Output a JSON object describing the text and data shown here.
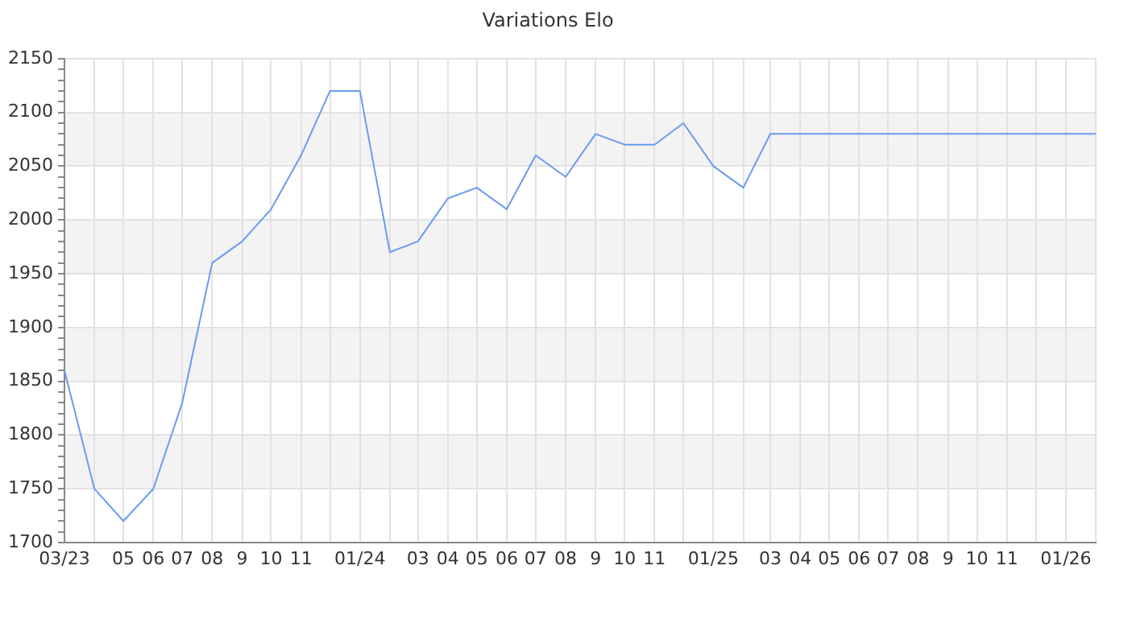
{
  "chart_data": {
    "type": "line",
    "title": "Variations Elo",
    "x": [
      "2023-03",
      "2023-04",
      "2023-05",
      "2023-06",
      "2023-07",
      "2023-08",
      "2023-09",
      "2023-10",
      "2023-11",
      "2023-12",
      "2024-01",
      "2024-02",
      "2024-03",
      "2024-04",
      "2024-05",
      "2024-06",
      "2024-07",
      "2024-08",
      "2024-09",
      "2024-10",
      "2024-11",
      "2024-12",
      "2025-01",
      "2025-02",
      "2025-03",
      "2025-04",
      "2025-05",
      "2025-06",
      "2025-07",
      "2025-08",
      "2025-09",
      "2025-10",
      "2025-11",
      "2025-12",
      "2026-01",
      "2026-02"
    ],
    "series": [
      {
        "color": "#6a9bef",
        "values": [
          1860,
          1750,
          1720,
          1750,
          1830,
          1960,
          1980,
          2010,
          2060,
          2120,
          2120,
          1970,
          1980,
          2020,
          2030,
          2010,
          2060,
          2040,
          2080,
          2070,
          2070,
          2090,
          2050,
          2030,
          2080,
          2080,
          2080,
          2080,
          2080,
          2080,
          2080,
          2080,
          2080,
          2080,
          2080,
          2080
        ]
      }
    ],
    "xlim": [
      "2023-03-01",
      "2026-02-01"
    ],
    "xticks": [
      {
        "value": "2023-03",
        "label": "03/23"
      },
      {
        "value": "2023-04",
        "label": null
      },
      {
        "value": "2023-05",
        "label": "05"
      },
      {
        "value": "2023-06",
        "label": "06"
      },
      {
        "value": "2023-07",
        "label": "07"
      },
      {
        "value": "2023-08",
        "label": "08"
      },
      {
        "value": "2023-09",
        "label": "9"
      },
      {
        "value": "2023-10",
        "label": "10"
      },
      {
        "value": "2023-11",
        "label": "11"
      },
      {
        "value": "2023-12",
        "label": null
      },
      {
        "value": "2024-01",
        "label": "01/24"
      },
      {
        "value": "2024-02",
        "label": null
      },
      {
        "value": "2024-03",
        "label": "03"
      },
      {
        "value": "2024-04",
        "label": "04"
      },
      {
        "value": "2024-05",
        "label": "05"
      },
      {
        "value": "2024-06",
        "label": "06"
      },
      {
        "value": "2024-07",
        "label": "07"
      },
      {
        "value": "2024-08",
        "label": "08"
      },
      {
        "value": "2024-09",
        "label": "9"
      },
      {
        "value": "2024-10",
        "label": "10"
      },
      {
        "value": "2024-11",
        "label": "11"
      },
      {
        "value": "2024-12",
        "label": null
      },
      {
        "value": "2025-01",
        "label": "01/25"
      },
      {
        "value": "2025-02",
        "label": null
      },
      {
        "value": "2025-03",
        "label": "03"
      },
      {
        "value": "2025-04",
        "label": "04"
      },
      {
        "value": "2025-05",
        "label": "05"
      },
      {
        "value": "2025-06",
        "label": "06"
      },
      {
        "value": "2025-07",
        "label": "07"
      },
      {
        "value": "2025-08",
        "label": "08"
      },
      {
        "value": "2025-09",
        "label": "9"
      },
      {
        "value": "2025-10",
        "label": "10"
      },
      {
        "value": "2025-11",
        "label": "11"
      },
      {
        "value": "2025-12",
        "label": null
      },
      {
        "value": "2026-01",
        "label": "01/26"
      },
      {
        "value": "2026-02",
        "label": null
      }
    ],
    "ylim": [
      1700,
      2150
    ],
    "yticks": [
      1700,
      {
        "value": 1710,
        "label": null
      },
      {
        "value": 1720,
        "label": null
      },
      {
        "value": 1730,
        "label": null
      },
      {
        "value": 1740,
        "label": null
      },
      1750,
      {
        "value": 1760,
        "label": null
      },
      {
        "value": 1770,
        "label": null
      },
      {
        "value": 1780,
        "label": null
      },
      {
        "value": 1790,
        "label": null
      },
      1800,
      {
        "value": 1810,
        "label": null
      },
      {
        "value": 1820,
        "label": null
      },
      {
        "value": 1830,
        "label": null
      },
      {
        "value": 1840,
        "label": null
      },
      1850,
      {
        "value": 1860,
        "label": null
      },
      {
        "value": 1870,
        "label": null
      },
      {
        "value": 1880,
        "label": null
      },
      {
        "value": 1890,
        "label": null
      },
      1900,
      {
        "value": 1910,
        "label": null
      },
      {
        "value": 1920,
        "label": null
      },
      {
        "value": 1930,
        "label": null
      },
      {
        "value": 1940,
        "label": null
      },
      1950,
      {
        "value": 1960,
        "label": null
      },
      {
        "value": 1970,
        "label": null
      },
      {
        "value": 1980,
        "label": null
      },
      {
        "value": 1990,
        "label": null
      },
      2000,
      {
        "value": 2010,
        "label": null
      },
      {
        "value": 2020,
        "label": null
      },
      {
        "value": 2030,
        "label": null
      },
      {
        "value": 2040,
        "label": null
      },
      2050,
      {
        "value": 2060,
        "label": null
      },
      {
        "value": 2070,
        "label": null
      },
      {
        "value": 2080,
        "label": null
      },
      {
        "value": 2090,
        "label": null
      },
      2100,
      {
        "value": 2110,
        "label": null
      },
      {
        "value": 2120,
        "label": null
      },
      {
        "value": 2130,
        "label": null
      },
      {
        "value": 2140,
        "label": null
      },
      2150
    ],
    "bands": [
      {
        "axis": "y",
        "from": 1750,
        "to": 1800,
        "color": "#f3f3f3"
      },
      {
        "axis": "y",
        "from": 1850,
        "to": 1900,
        "color": "#f3f3f3"
      },
      {
        "axis": "y",
        "from": 1950,
        "to": 2000,
        "color": "#f3f3f3"
      },
      {
        "axis": "y",
        "from": 2050,
        "to": 2100,
        "color": "#f3f3f3"
      }
    ],
    "grid": true,
    "marker": "none",
    "line_style": "solid"
  }
}
